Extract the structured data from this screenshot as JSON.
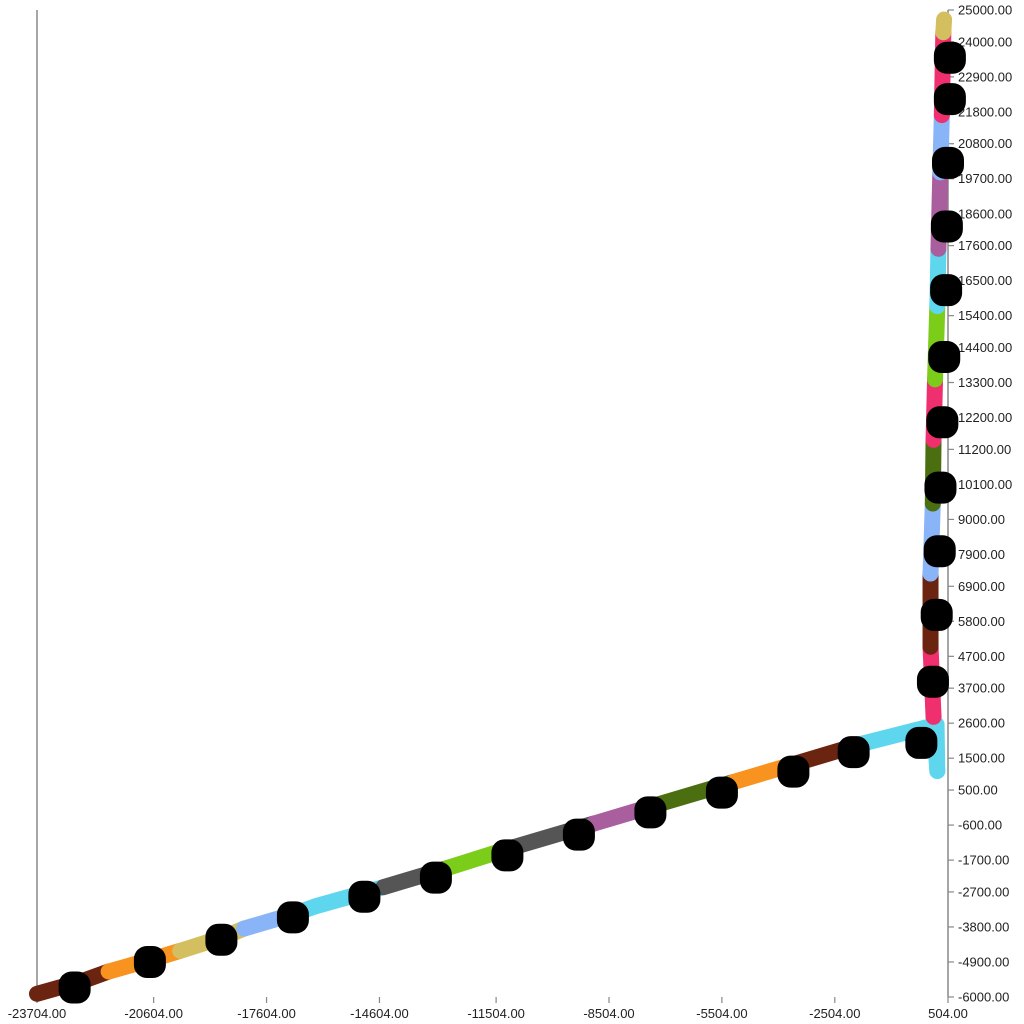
{
  "chart_data": {
    "type": "line",
    "title": "",
    "xlabel": "",
    "ylabel": "",
    "xlim": [
      -23704,
      504
    ],
    "ylim": [
      -6000,
      25000
    ],
    "grid": false,
    "legend": "none",
    "x_ticks": [
      "-23704.00",
      "-20604.00",
      "-17604.00",
      "-14604.00",
      "-11504.00",
      "-8504.00",
      "-5504.00",
      "-2504.00",
      "504.00"
    ],
    "x_tick_values": [
      -23704,
      -20604,
      -17604,
      -14604,
      -11504,
      -8504,
      -5504,
      -2504,
      504
    ],
    "y_ticks": [
      "25000.00",
      "24000.00",
      "22900.00",
      "21800.00",
      "20800.00",
      "19700.00",
      "18600.00",
      "17600.00",
      "16500.00",
      "15400.00",
      "14400.00",
      "13300.00",
      "12200.00",
      "11200.00",
      "10100.00",
      "9000.00",
      "7900.00",
      "6900.00",
      "5800.00",
      "4700.00",
      "3700.00",
      "2600.00",
      "1500.00",
      "500.00",
      "-600.00",
      "-1700.00",
      "-2700.00",
      "-3800.00",
      "-4900.00",
      "-6000.00"
    ],
    "y_tick_values": [
      25000,
      24000,
      22900,
      21800,
      20800,
      19700,
      18600,
      17600,
      16500,
      15400,
      14400,
      13300,
      12200,
      11200,
      10100,
      9000,
      7900,
      6900,
      5800,
      4700,
      3700,
      2600,
      1500,
      500,
      -600,
      -1700,
      -2700,
      -3800,
      -4900,
      -6000
    ],
    "segments": [
      {
        "x0": -23704,
        "y0": -5900,
        "x1": -22500,
        "y1": -5500,
        "color": "#6b2410"
      },
      {
        "x0": -22500,
        "y0": -5500,
        "x1": -21800,
        "y1": -5200,
        "color": "#6b2410"
      },
      {
        "x0": -21800,
        "y0": -5200,
        "x1": -20600,
        "y1": -4800,
        "color": "#f7931e"
      },
      {
        "x0": -20600,
        "y0": -4800,
        "x1": -19900,
        "y1": -4550,
        "color": "#f7931e"
      },
      {
        "x0": -19900,
        "y0": -4550,
        "x1": -18700,
        "y1": -4100,
        "color": "#d4bf60"
      },
      {
        "x0": -18700,
        "y0": -4100,
        "x1": -18200,
        "y1": -3850,
        "color": "#d4bf60"
      },
      {
        "x0": -18200,
        "y0": -3850,
        "x1": -16900,
        "y1": -3400,
        "color": "#8ab4f8"
      },
      {
        "x0": -16900,
        "y0": -3400,
        "x1": -16300,
        "y1": -3150,
        "color": "#5ed7ee"
      },
      {
        "x0": -16300,
        "y0": -3150,
        "x1": -14500,
        "y1": -2550,
        "color": "#5ed7ee"
      },
      {
        "x0": -14500,
        "y0": -2550,
        "x1": -12800,
        "y1": -1950,
        "color": "#555555"
      },
      {
        "x0": -12800,
        "y0": -1950,
        "x1": -11200,
        "y1": -1350,
        "color": "#7ccc1a"
      },
      {
        "x0": -11200,
        "y0": -1350,
        "x1": -8900,
        "y1": -550,
        "color": "#555555"
      },
      {
        "x0": -8900,
        "y0": -550,
        "x1": -7200,
        "y1": 50,
        "color": "#a95e9e"
      },
      {
        "x0": -7200,
        "y0": 50,
        "x1": -5200,
        "y1": 750,
        "color": "#4a6e10"
      },
      {
        "x0": -5200,
        "y0": 750,
        "x1": -3500,
        "y1": 1350,
        "color": "#f7931e"
      },
      {
        "x0": -3500,
        "y0": 1350,
        "x1": -1800,
        "y1": 1950,
        "color": "#6b2410"
      },
      {
        "x0": -1800,
        "y0": 1950,
        "x1": 200,
        "y1": 2550,
        "color": "#5ed7ee"
      },
      {
        "x0": 200,
        "y0": 2550,
        "x1": 220,
        "y1": 1100,
        "color": "#5ed7ee"
      },
      {
        "x0": 220,
        "y0": 1100,
        "x1": 120,
        "y1": 2800,
        "color": "#5ed7ee"
      },
      {
        "x0": 120,
        "y0": 2800,
        "x1": 40,
        "y1": 5000,
        "color": "#ef2f6e"
      },
      {
        "x0": 40,
        "y0": 5000,
        "x1": 40,
        "y1": 7300,
        "color": "#6b2410"
      },
      {
        "x0": 40,
        "y0": 7300,
        "x1": 100,
        "y1": 9500,
        "color": "#8ab4f8"
      },
      {
        "x0": 100,
        "y0": 9500,
        "x1": 120,
        "y1": 11500,
        "color": "#4a6e10"
      },
      {
        "x0": 120,
        "y0": 11500,
        "x1": 160,
        "y1": 13400,
        "color": "#ef2f6e"
      },
      {
        "x0": 160,
        "y0": 13400,
        "x1": 220,
        "y1": 15700,
        "color": "#7ccc1a"
      },
      {
        "x0": 220,
        "y0": 15700,
        "x1": 250,
        "y1": 17500,
        "color": "#5ed7ee"
      },
      {
        "x0": 250,
        "y0": 17500,
        "x1": 300,
        "y1": 19900,
        "color": "#a95e9e"
      },
      {
        "x0": 300,
        "y0": 19900,
        "x1": 340,
        "y1": 21700,
        "color": "#8ab4f8"
      },
      {
        "x0": 340,
        "y0": 21700,
        "x1": 380,
        "y1": 24300,
        "color": "#ef2f6e"
      },
      {
        "x0": 380,
        "y0": 24300,
        "x1": 400,
        "y1": 24700,
        "color": "#d4bf60"
      }
    ],
    "markers": [
      {
        "x": -22704,
        "y": -5700
      },
      {
        "x": -20704,
        "y": -4900
      },
      {
        "x": -18804,
        "y": -4200
      },
      {
        "x": -16904,
        "y": -3500
      },
      {
        "x": -15004,
        "y": -2850
      },
      {
        "x": -13104,
        "y": -2250
      },
      {
        "x": -11204,
        "y": -1550
      },
      {
        "x": -9304,
        "y": -900
      },
      {
        "x": -7404,
        "y": -200
      },
      {
        "x": -5504,
        "y": 420
      },
      {
        "x": -3604,
        "y": 1080
      },
      {
        "x": -2004,
        "y": 1690
      },
      {
        "x": -204,
        "y": 1980
      },
      {
        "x": 104,
        "y": 3900
      },
      {
        "x": 204,
        "y": 6000
      },
      {
        "x": 284,
        "y": 8000
      },
      {
        "x": 304,
        "y": 10000
      },
      {
        "x": 354,
        "y": 12050
      },
      {
        "x": 404,
        "y": 14100
      },
      {
        "x": 454,
        "y": 16200
      },
      {
        "x": 474,
        "y": 18200
      },
      {
        "x": 504,
        "y": 20200
      },
      {
        "x": 554,
        "y": 22200
      },
      {
        "x": 554,
        "y": 23500
      }
    ],
    "line_width": 8,
    "marker_color": "#000000"
  }
}
